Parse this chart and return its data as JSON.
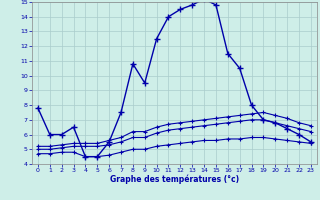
{
  "title": "Graphe des températures (°c)",
  "bg_color": "#ceeee8",
  "line_color": "#0000aa",
  "grid_color": "#aacccc",
  "xlim": [
    -0.5,
    23.5
  ],
  "ylim": [
    4,
    15
  ],
  "xticks": [
    0,
    1,
    2,
    3,
    4,
    5,
    6,
    7,
    8,
    9,
    10,
    11,
    12,
    13,
    14,
    15,
    16,
    17,
    18,
    19,
    20,
    21,
    22,
    23
  ],
  "yticks": [
    4,
    5,
    6,
    7,
    8,
    9,
    10,
    11,
    12,
    13,
    14,
    15
  ],
  "s1_x": [
    0,
    1,
    2,
    3,
    4,
    5,
    6,
    7,
    8,
    9,
    10,
    11,
    12,
    13,
    14,
    15,
    16,
    17,
    18,
    19,
    20,
    21,
    22,
    23
  ],
  "s1_y": [
    7.8,
    6.0,
    6.0,
    6.5,
    4.5,
    4.5,
    5.5,
    7.5,
    10.8,
    9.5,
    12.5,
    14.0,
    14.5,
    14.8,
    15.2,
    14.8,
    11.5,
    10.5,
    8.0,
    7.0,
    6.8,
    6.4,
    6.0,
    5.5
  ],
  "s2_x": [
    0,
    1,
    2,
    3,
    4,
    5,
    6,
    7,
    8,
    9,
    10,
    11,
    12,
    13,
    14,
    15,
    16,
    17,
    18,
    19,
    20,
    21,
    22,
    23
  ],
  "s2_y": [
    5.2,
    5.2,
    5.3,
    5.4,
    5.4,
    5.4,
    5.6,
    5.8,
    6.2,
    6.2,
    6.5,
    6.7,
    6.8,
    6.9,
    7.0,
    7.1,
    7.2,
    7.3,
    7.4,
    7.5,
    7.3,
    7.1,
    6.8,
    6.6
  ],
  "s3_x": [
    0,
    1,
    2,
    3,
    4,
    5,
    6,
    7,
    8,
    9,
    10,
    11,
    12,
    13,
    14,
    15,
    16,
    17,
    18,
    19,
    20,
    21,
    22,
    23
  ],
  "s3_y": [
    5.0,
    5.0,
    5.1,
    5.2,
    5.2,
    5.2,
    5.3,
    5.5,
    5.8,
    5.8,
    6.1,
    6.3,
    6.4,
    6.5,
    6.6,
    6.7,
    6.8,
    6.9,
    7.0,
    7.0,
    6.8,
    6.6,
    6.4,
    6.2
  ],
  "s4_x": [
    0,
    1,
    2,
    3,
    4,
    5,
    6,
    7,
    8,
    9,
    10,
    11,
    12,
    13,
    14,
    15,
    16,
    17,
    18,
    19,
    20,
    21,
    22,
    23
  ],
  "s4_y": [
    4.7,
    4.7,
    4.8,
    4.8,
    4.5,
    4.5,
    4.6,
    4.8,
    5.0,
    5.0,
    5.2,
    5.3,
    5.4,
    5.5,
    5.6,
    5.6,
    5.7,
    5.7,
    5.8,
    5.8,
    5.7,
    5.6,
    5.5,
    5.4
  ]
}
